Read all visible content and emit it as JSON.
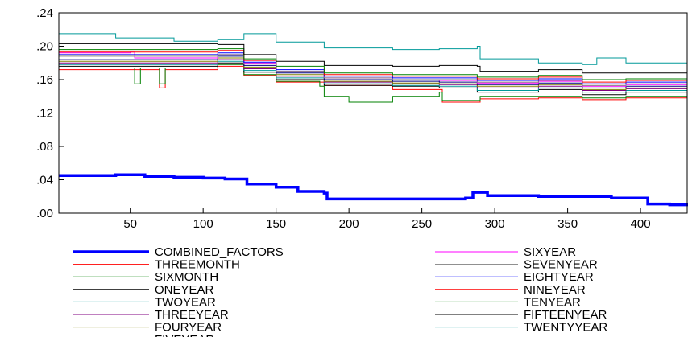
{
  "chart_data": {
    "type": "line",
    "title": "",
    "xlabel": "",
    "ylabel": "",
    "xlim": [
      1,
      432
    ],
    "ylim": [
      0.0,
      0.24
    ],
    "x_ticks": [
      50,
      100,
      150,
      200,
      250,
      300,
      350,
      400
    ],
    "x_tick_labels": [
      "50",
      "100",
      "150",
      "200",
      "250",
      "300",
      "350",
      "400"
    ],
    "y_ticks": [
      0.0,
      0.04,
      0.08,
      0.12,
      0.16,
      0.2,
      0.24
    ],
    "y_tick_labels": [
      ".00",
      ".04",
      ".08",
      ".12",
      ".16",
      ".20",
      ".24"
    ],
    "grid": false,
    "legend_position": "bottom",
    "series": [
      {
        "name": "COMBINED_FACTORS",
        "color": "#0000ff",
        "points": [
          [
            1,
            0.045
          ],
          [
            40,
            0.046
          ],
          [
            60,
            0.044
          ],
          [
            80,
            0.043
          ],
          [
            100,
            0.042
          ],
          [
            115,
            0.041
          ],
          [
            130,
            0.035
          ],
          [
            150,
            0.031
          ],
          [
            165,
            0.026
          ],
          [
            183,
            0.024
          ],
          [
            185,
            0.017
          ],
          [
            230,
            0.017
          ],
          [
            280,
            0.018
          ],
          [
            285,
            0.025
          ],
          [
            295,
            0.021
          ],
          [
            330,
            0.02
          ],
          [
            360,
            0.02
          ],
          [
            380,
            0.018
          ],
          [
            405,
            0.011
          ],
          [
            420,
            0.01
          ],
          [
            432,
            0.012
          ]
        ]
      },
      {
        "name": "THREEMONTH",
        "color": "#ff0000",
        "points": [
          [
            1,
            0.172
          ],
          [
            65,
            0.172
          ],
          [
            70,
            0.15
          ],
          [
            74,
            0.172
          ],
          [
            110,
            0.176
          ],
          [
            128,
            0.165
          ],
          [
            150,
            0.157
          ],
          [
            183,
            0.153
          ],
          [
            230,
            0.148
          ],
          [
            262,
            0.148
          ],
          [
            264,
            0.133
          ],
          [
            288,
            0.133
          ],
          [
            290,
            0.137
          ],
          [
            330,
            0.138
          ],
          [
            360,
            0.136
          ],
          [
            390,
            0.138
          ],
          [
            432,
            0.136
          ]
        ]
      },
      {
        "name": "SIXMONTH",
        "color": "#008000",
        "points": [
          [
            1,
            0.174
          ],
          [
            50,
            0.174
          ],
          [
            53,
            0.155
          ],
          [
            57,
            0.174
          ],
          [
            68,
            0.174
          ],
          [
            70,
            0.155
          ],
          [
            74,
            0.174
          ],
          [
            110,
            0.178
          ],
          [
            128,
            0.166
          ],
          [
            150,
            0.158
          ],
          [
            180,
            0.152
          ],
          [
            183,
            0.14
          ],
          [
            200,
            0.133
          ],
          [
            230,
            0.14
          ],
          [
            262,
            0.145
          ],
          [
            264,
            0.135
          ],
          [
            288,
            0.135
          ],
          [
            290,
            0.14
          ],
          [
            330,
            0.14
          ],
          [
            360,
            0.138
          ],
          [
            390,
            0.14
          ],
          [
            432,
            0.138
          ]
        ]
      },
      {
        "name": "ONEYEAR",
        "color": "#000000",
        "points": [
          [
            1,
            0.176
          ],
          [
            110,
            0.18
          ],
          [
            128,
            0.169
          ],
          [
            150,
            0.16
          ],
          [
            183,
            0.153
          ],
          [
            230,
            0.152
          ],
          [
            262,
            0.15
          ],
          [
            288,
            0.145
          ],
          [
            330,
            0.148
          ],
          [
            360,
            0.142
          ],
          [
            390,
            0.145
          ],
          [
            432,
            0.14
          ]
        ]
      },
      {
        "name": "TWOYEAR",
        "color": "#009999",
        "points": [
          [
            1,
            0.178
          ],
          [
            110,
            0.182
          ],
          [
            128,
            0.171
          ],
          [
            150,
            0.162
          ],
          [
            183,
            0.155
          ],
          [
            230,
            0.153
          ],
          [
            262,
            0.152
          ],
          [
            288,
            0.147
          ],
          [
            330,
            0.15
          ],
          [
            360,
            0.145
          ],
          [
            390,
            0.147
          ],
          [
            432,
            0.142
          ]
        ]
      },
      {
        "name": "THREEYEAR",
        "color": "#800080",
        "points": [
          [
            1,
            0.18
          ],
          [
            110,
            0.184
          ],
          [
            128,
            0.173
          ],
          [
            150,
            0.164
          ],
          [
            183,
            0.157
          ],
          [
            230,
            0.155
          ],
          [
            262,
            0.154
          ],
          [
            288,
            0.15
          ],
          [
            330,
            0.152
          ],
          [
            360,
            0.147
          ],
          [
            390,
            0.149
          ],
          [
            432,
            0.144
          ]
        ]
      },
      {
        "name": "FOURYEAR",
        "color": "#808000",
        "points": [
          [
            1,
            0.182
          ],
          [
            110,
            0.186
          ],
          [
            128,
            0.175
          ],
          [
            150,
            0.166
          ],
          [
            183,
            0.158
          ],
          [
            230,
            0.156
          ],
          [
            262,
            0.155
          ],
          [
            288,
            0.152
          ],
          [
            330,
            0.154
          ],
          [
            360,
            0.148
          ],
          [
            390,
            0.15
          ],
          [
            432,
            0.146
          ]
        ]
      },
      {
        "name": "FIVEYEAR",
        "color": "#000080",
        "points": [
          [
            1,
            0.184
          ],
          [
            110,
            0.188
          ],
          [
            128,
            0.177
          ],
          [
            150,
            0.168
          ],
          [
            183,
            0.16
          ],
          [
            230,
            0.158
          ],
          [
            262,
            0.157
          ],
          [
            288,
            0.154
          ],
          [
            330,
            0.156
          ],
          [
            360,
            0.15
          ],
          [
            390,
            0.152
          ],
          [
            432,
            0.148
          ]
        ]
      },
      {
        "name": "SIXYEAR",
        "color": "#ff00ff",
        "points": [
          [
            1,
            0.192
          ],
          [
            50,
            0.193
          ],
          [
            53,
            0.186
          ],
          [
            110,
            0.19
          ],
          [
            128,
            0.18
          ],
          [
            150,
            0.17
          ],
          [
            183,
            0.162
          ],
          [
            230,
            0.16
          ],
          [
            262,
            0.159
          ],
          [
            288,
            0.156
          ],
          [
            330,
            0.158
          ],
          [
            360,
            0.152
          ],
          [
            390,
            0.154
          ],
          [
            432,
            0.15
          ]
        ]
      },
      {
        "name": "SEVENYEAR",
        "color": "#808080",
        "points": [
          [
            1,
            0.188
          ],
          [
            110,
            0.19
          ],
          [
            128,
            0.179
          ],
          [
            150,
            0.17
          ],
          [
            183,
            0.162
          ],
          [
            230,
            0.16
          ],
          [
            262,
            0.16
          ],
          [
            288,
            0.157
          ],
          [
            330,
            0.159
          ],
          [
            360,
            0.153
          ],
          [
            390,
            0.155
          ],
          [
            432,
            0.15
          ]
        ]
      },
      {
        "name": "EIGHTYEAR",
        "color": "#0000ff",
        "points": [
          [
            1,
            0.19
          ],
          [
            110,
            0.192
          ],
          [
            128,
            0.181
          ],
          [
            150,
            0.172
          ],
          [
            183,
            0.164
          ],
          [
            230,
            0.162
          ],
          [
            262,
            0.162
          ],
          [
            288,
            0.159
          ],
          [
            330,
            0.161
          ],
          [
            360,
            0.155
          ],
          [
            390,
            0.157
          ],
          [
            432,
            0.152
          ]
        ]
      },
      {
        "name": "NINEYEAR",
        "color": "#ff0000",
        "points": [
          [
            1,
            0.193
          ],
          [
            110,
            0.195
          ],
          [
            128,
            0.183
          ],
          [
            150,
            0.174
          ],
          [
            183,
            0.166
          ],
          [
            230,
            0.164
          ],
          [
            262,
            0.164
          ],
          [
            288,
            0.161
          ],
          [
            330,
            0.163
          ],
          [
            360,
            0.157
          ],
          [
            390,
            0.159
          ],
          [
            432,
            0.154
          ]
        ]
      },
      {
        "name": "TENYEAR",
        "color": "#008000",
        "points": [
          [
            1,
            0.196
          ],
          [
            110,
            0.197
          ],
          [
            128,
            0.185
          ],
          [
            150,
            0.176
          ],
          [
            183,
            0.168
          ],
          [
            230,
            0.166
          ],
          [
            262,
            0.166
          ],
          [
            288,
            0.163
          ],
          [
            330,
            0.165
          ],
          [
            360,
            0.16
          ],
          [
            390,
            0.161
          ],
          [
            432,
            0.156
          ]
        ]
      },
      {
        "name": "FIFTEENYEAR",
        "color": "#000000",
        "points": [
          [
            1,
            0.203
          ],
          [
            110,
            0.202
          ],
          [
            128,
            0.19
          ],
          [
            150,
            0.182
          ],
          [
            183,
            0.177
          ],
          [
            230,
            0.176
          ],
          [
            262,
            0.177
          ],
          [
            288,
            0.176
          ],
          [
            290,
            0.17
          ],
          [
            330,
            0.172
          ],
          [
            360,
            0.168
          ],
          [
            390,
            0.168
          ],
          [
            432,
            0.163
          ]
        ]
      },
      {
        "name": "TWENTYYEAR",
        "color": "#009999",
        "points": [
          [
            1,
            0.215
          ],
          [
            35,
            0.215
          ],
          [
            40,
            0.21
          ],
          [
            80,
            0.206
          ],
          [
            110,
            0.208
          ],
          [
            128,
            0.215
          ],
          [
            150,
            0.205
          ],
          [
            183,
            0.198
          ],
          [
            230,
            0.196
          ],
          [
            262,
            0.197
          ],
          [
            288,
            0.2
          ],
          [
            290,
            0.185
          ],
          [
            330,
            0.18
          ],
          [
            360,
            0.178
          ],
          [
            370,
            0.186
          ],
          [
            390,
            0.18
          ],
          [
            432,
            0.168
          ]
        ]
      }
    ]
  }
}
